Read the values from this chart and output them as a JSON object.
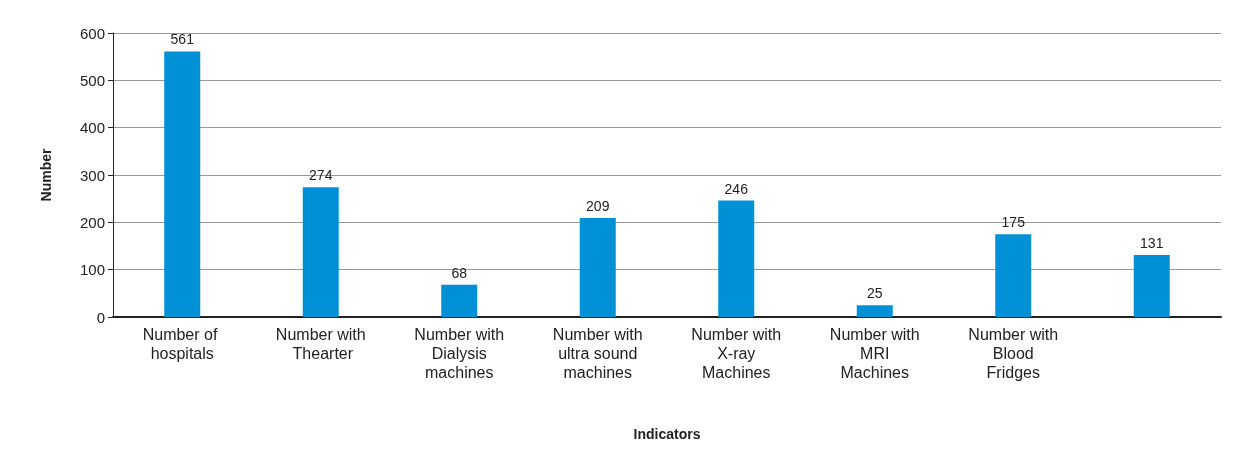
{
  "chart_data": {
    "type": "bar",
    "xlabel": "Indicators",
    "ylabel": "Number",
    "categories": [
      "Number of hospitals",
      "Number with Thearter",
      "Number with Dialysis machines",
      "Number with ultra sound machines",
      "Number with X-ray Machines",
      "Number with MRI Machines",
      "Number with Blood Fridges",
      null
    ],
    "values": [
      561,
      274,
      68,
      209,
      246,
      25,
      175,
      131
    ],
    "color": "#0090d6",
    "ylim": [
      0,
      600
    ],
    "yticks": [
      0,
      100,
      200,
      300,
      400,
      500,
      600
    ],
    "grid": "y",
    "data_labels": true
  }
}
